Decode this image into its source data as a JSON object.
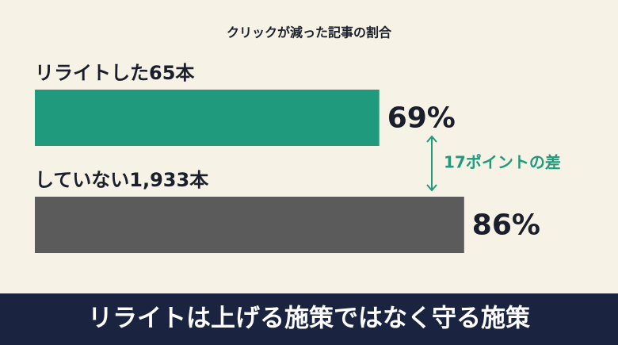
{
  "chart_data": {
    "type": "bar",
    "orientation": "horizontal",
    "title": "クリックが減った記事の割合",
    "categories": [
      "リライトした65本",
      "していない1,933本"
    ],
    "values": [
      69,
      86
    ],
    "value_labels": [
      "69%",
      "86%"
    ],
    "colors": [
      "#1f9a7d",
      "#5b5b5b"
    ],
    "annotation": "17ポイントの差",
    "annotation_color": "#1f9a7d",
    "footer": "リライトは上げる施策ではなく守る施策"
  }
}
